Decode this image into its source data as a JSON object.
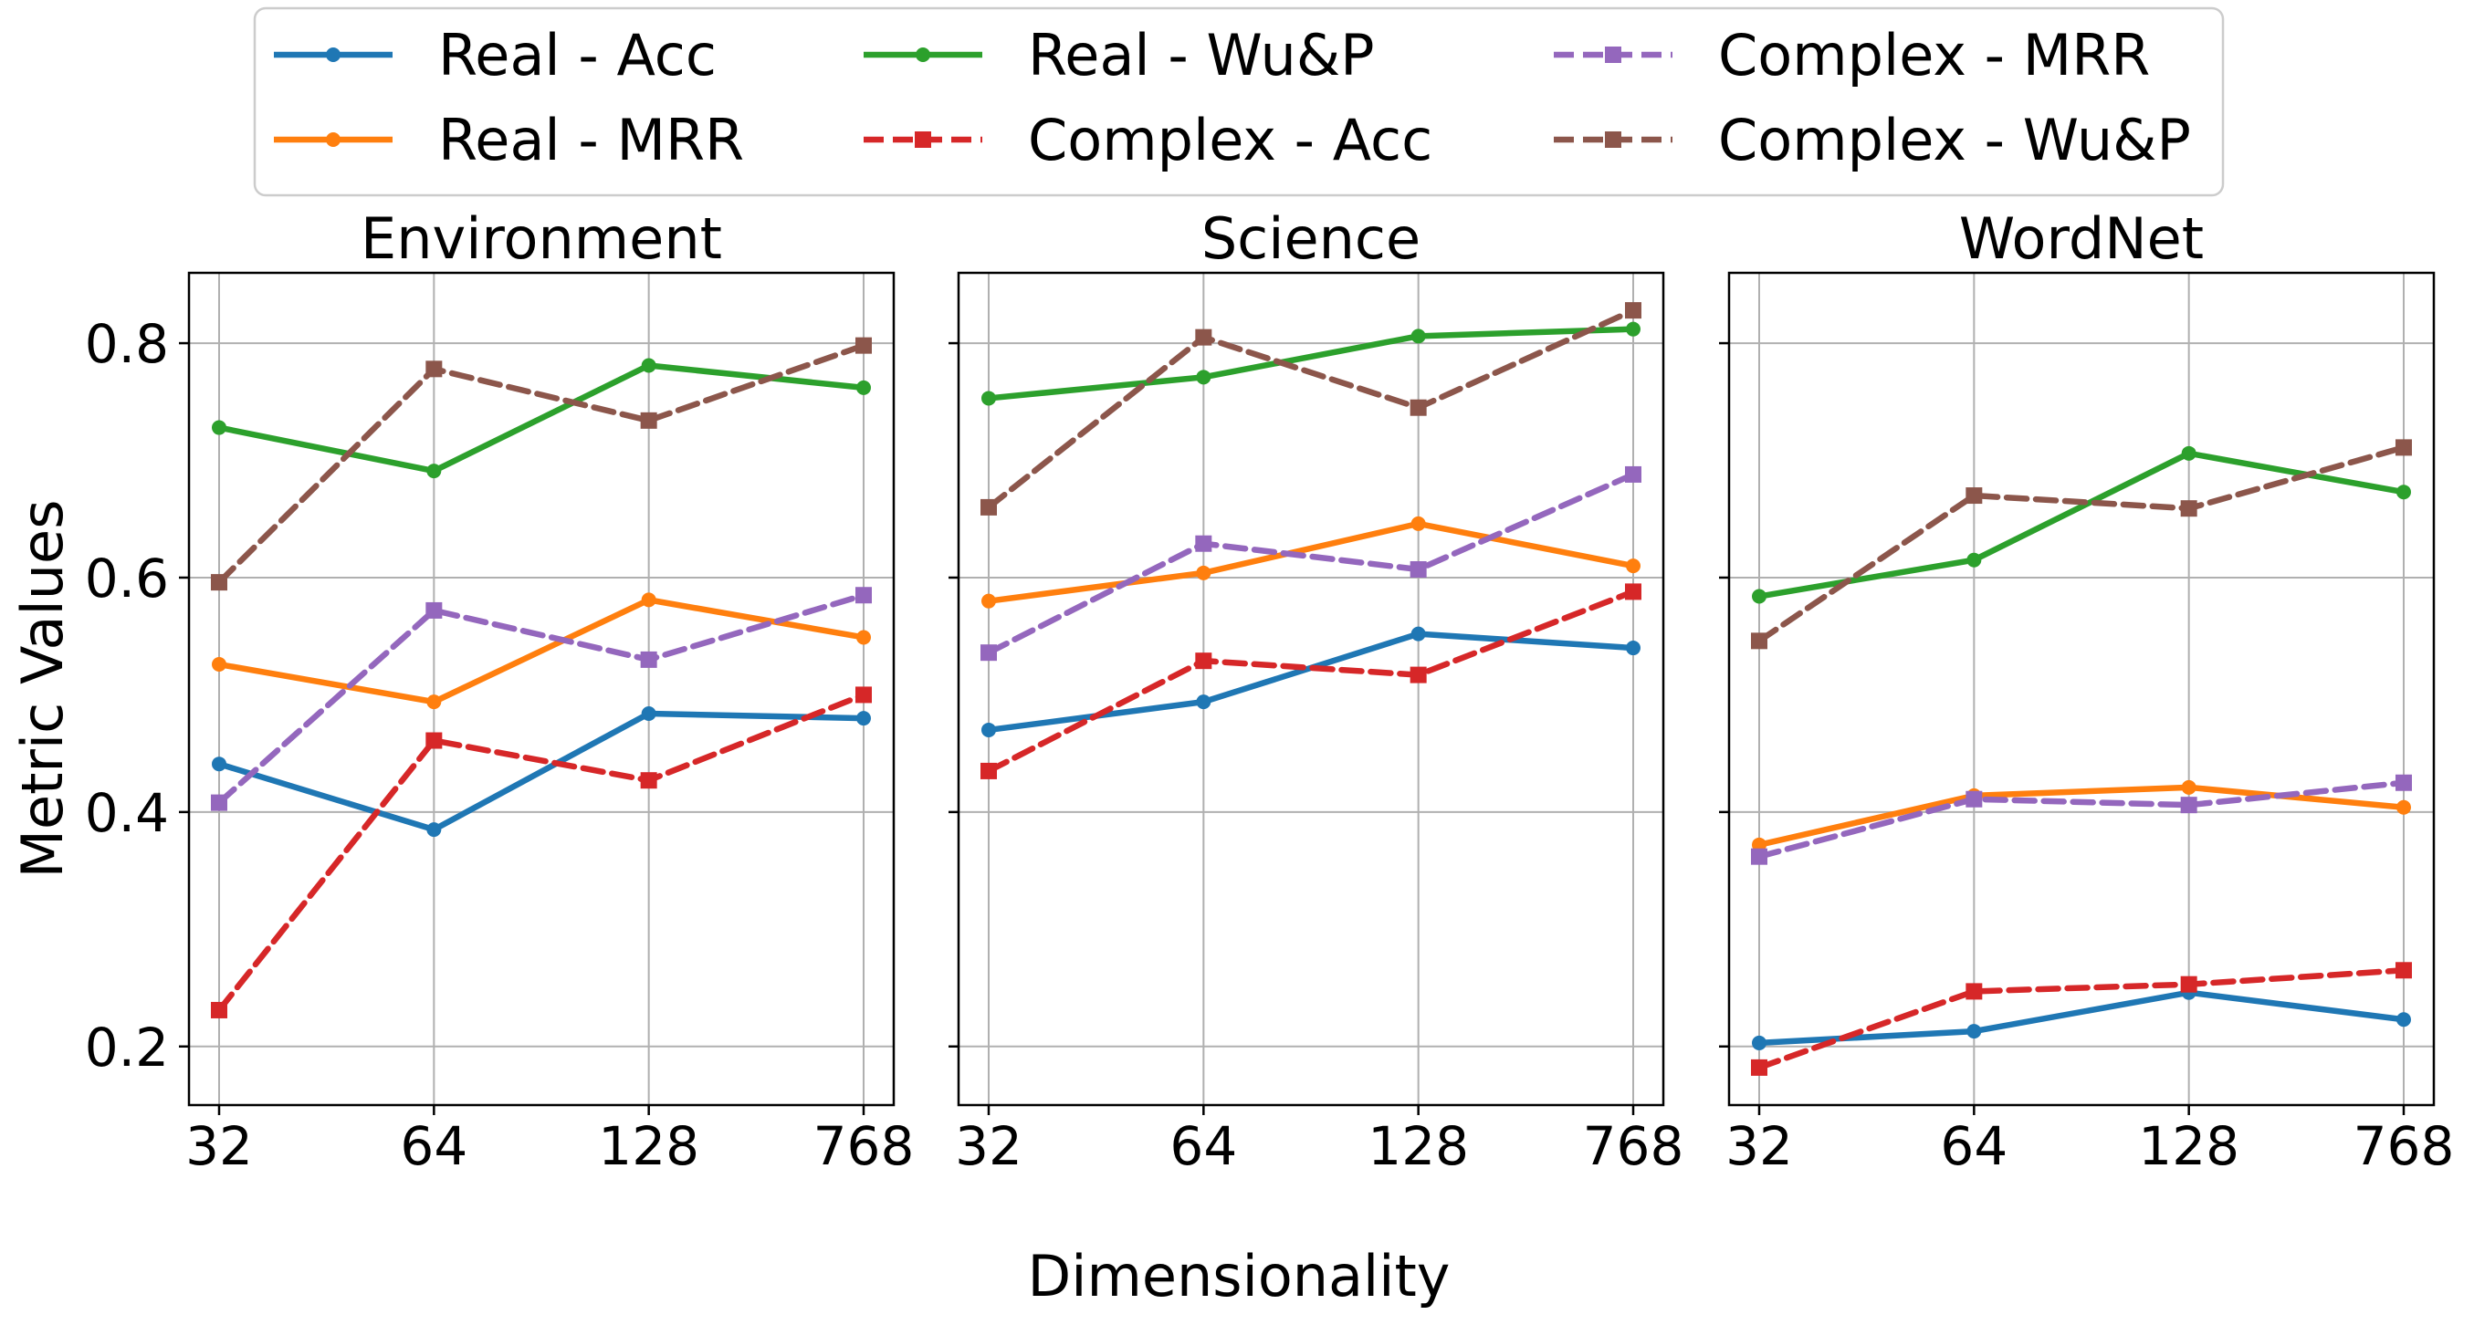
{
  "chart_data": {
    "type": "line",
    "xlabel": "Dimensionality",
    "ylabel": "Metric Values",
    "x": [
      "32",
      "64",
      "128",
      "768"
    ],
    "ylim": [
      0.15,
      0.86
    ],
    "yticks": [
      0.2,
      0.4,
      0.6,
      0.8
    ],
    "ytick_labels": [
      "0.2",
      "0.4",
      "0.6",
      "0.8"
    ],
    "grid": true,
    "legend_position": "top-center",
    "legend": [
      {
        "name": "Real - Acc",
        "color": "#1f77b4",
        "dash": "solid",
        "marker": "circle"
      },
      {
        "name": "Real - MRR",
        "color": "#ff7f0e",
        "dash": "solid",
        "marker": "circle"
      },
      {
        "name": "Real - Wu&P",
        "color": "#2ca02c",
        "dash": "solid",
        "marker": "circle"
      },
      {
        "name": "Complex - Acc",
        "color": "#d62728",
        "dash": "dashed",
        "marker": "square"
      },
      {
        "name": "Complex - MRR",
        "color": "#9467bd",
        "dash": "dashed",
        "marker": "square"
      },
      {
        "name": "Complex - Wu&P",
        "color": "#8c564b",
        "dash": "dashed",
        "marker": "square"
      }
    ],
    "panels": [
      {
        "title": "Environment",
        "series": [
          {
            "name": "Real - Acc",
            "values": [
              0.441,
              0.385,
              0.484,
              0.48
            ]
          },
          {
            "name": "Real - MRR",
            "values": [
              0.526,
              0.494,
              0.581,
              0.549
            ]
          },
          {
            "name": "Real - Wu&P",
            "values": [
              0.728,
              0.691,
              0.781,
              0.762
            ]
          },
          {
            "name": "Complex - Acc",
            "values": [
              0.231,
              0.461,
              0.427,
              0.5
            ]
          },
          {
            "name": "Complex - MRR",
            "values": [
              0.408,
              0.572,
              0.53,
              0.585
            ]
          },
          {
            "name": "Complex - Wu&P",
            "values": [
              0.596,
              0.778,
              0.734,
              0.798
            ]
          }
        ]
      },
      {
        "title": "Science",
        "series": [
          {
            "name": "Real - Acc",
            "values": [
              0.47,
              0.494,
              0.552,
              0.54
            ]
          },
          {
            "name": "Real - MRR",
            "values": [
              0.58,
              0.604,
              0.646,
              0.61
            ]
          },
          {
            "name": "Real - Wu&P",
            "values": [
              0.753,
              0.771,
              0.806,
              0.812
            ]
          },
          {
            "name": "Complex - Acc",
            "values": [
              0.435,
              0.529,
              0.517,
              0.588
            ]
          },
          {
            "name": "Complex - MRR",
            "values": [
              0.536,
              0.629,
              0.607,
              0.688
            ]
          },
          {
            "name": "Complex - Wu&P",
            "values": [
              0.66,
              0.805,
              0.745,
              0.828
            ]
          }
        ]
      },
      {
        "title": "WordNet",
        "series": [
          {
            "name": "Real - Acc",
            "values": [
              0.203,
              0.213,
              0.246,
              0.223
            ]
          },
          {
            "name": "Real - MRR",
            "values": [
              0.372,
              0.414,
              0.421,
              0.404
            ]
          },
          {
            "name": "Real - Wu&P",
            "values": [
              0.584,
              0.615,
              0.706,
              0.673
            ]
          },
          {
            "name": "Complex - Acc",
            "values": [
              0.182,
              0.247,
              0.253,
              0.265
            ]
          },
          {
            "name": "Complex - MRR",
            "values": [
              0.362,
              0.411,
              0.406,
              0.425
            ]
          },
          {
            "name": "Complex - Wu&P",
            "values": [
              0.546,
              0.67,
              0.659,
              0.711
            ]
          }
        ]
      }
    ]
  }
}
